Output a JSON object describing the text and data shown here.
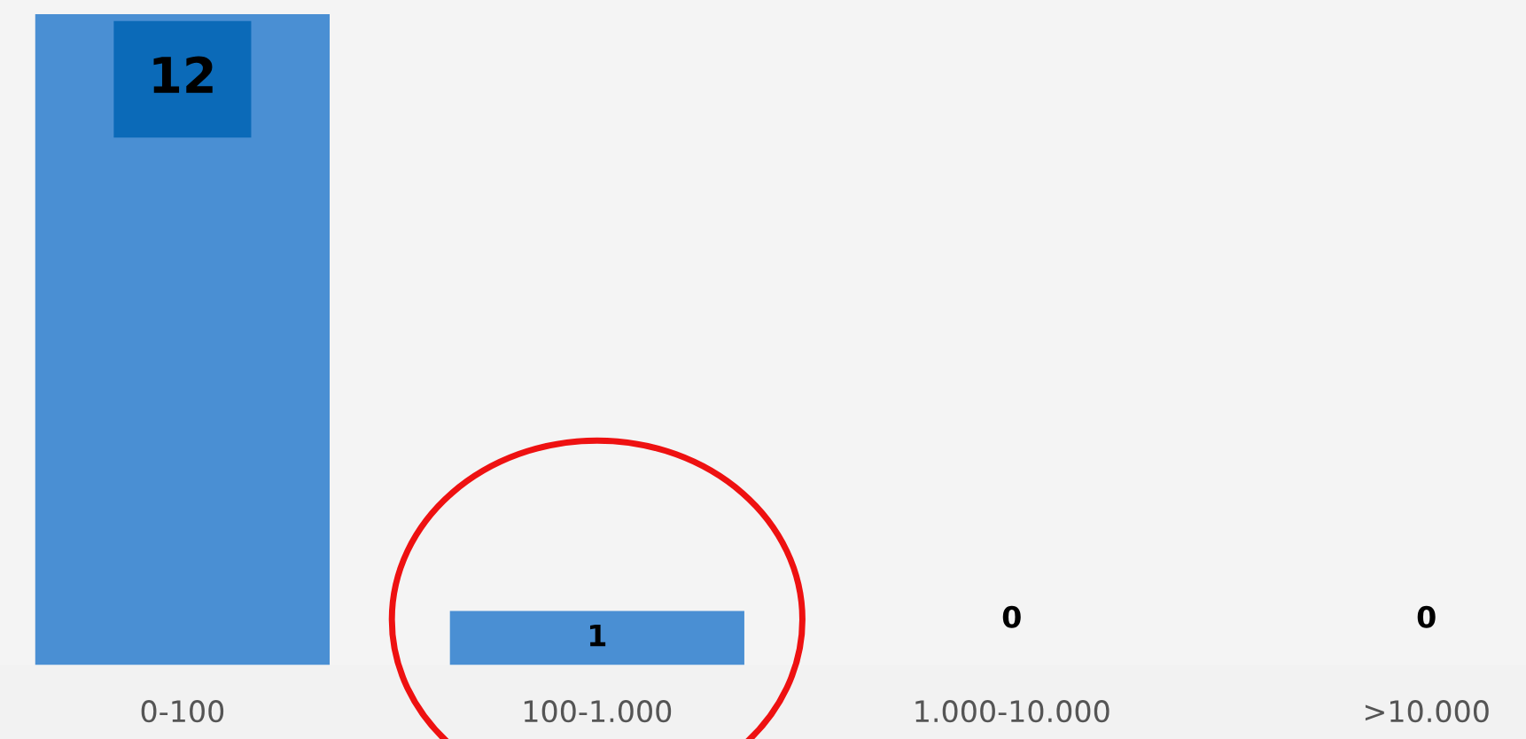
{
  "chart_data": {
    "type": "bar",
    "categories": [
      "0-100",
      "100-1.000",
      "1.000-10.000",
      ">10.000"
    ],
    "values": [
      12,
      1,
      0,
      0
    ],
    "color": "#4a8fd3",
    "data_labels": true,
    "grid": false,
    "legend": false
  }
}
